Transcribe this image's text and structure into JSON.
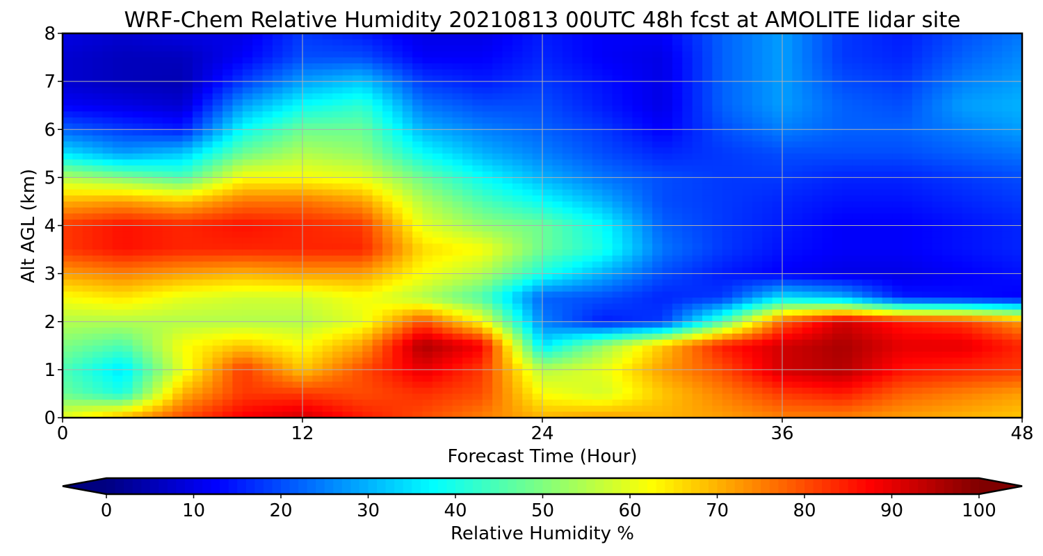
{
  "chart_data": {
    "type": "heatmap",
    "title": "WRF-Chem Relative Humidity 20210813 00UTC 48h fcst at AMOLITE lidar site",
    "xlabel": "Forecast Time (Hour)",
    "ylabel": "Alt AGL (km)",
    "xlim": [
      0,
      48
    ],
    "ylim": [
      0,
      8
    ],
    "x_ticks": [
      0,
      12,
      24,
      36,
      48
    ],
    "y_ticks": [
      0,
      1,
      2,
      3,
      4,
      5,
      6,
      7,
      8
    ],
    "grid": true,
    "colormap": "jet",
    "colorbar": {
      "label": "Relative Humidity %",
      "min": 0,
      "max": 100,
      "ticks": [
        0,
        10,
        20,
        30,
        40,
        50,
        60,
        70,
        80,
        90,
        100
      ],
      "extend": "both",
      "orientation": "horizontal",
      "placement": "bottom"
    },
    "x": [
      0,
      3,
      6,
      9,
      12,
      15,
      18,
      21,
      24,
      27,
      30,
      33,
      36,
      39,
      42,
      45,
      48
    ],
    "y": [
      0,
      0.5,
      1,
      1.5,
      2,
      2.5,
      3,
      3.5,
      4,
      4.5,
      5,
      5.5,
      6,
      6.5,
      7,
      7.5,
      8
    ],
    "values": [
      [
        60,
        70,
        80,
        88,
        92,
        85,
        80,
        75,
        70,
        72,
        70,
        72,
        75,
        75,
        72,
        70,
        68
      ],
      [
        48,
        40,
        70,
        82,
        82,
        80,
        83,
        80,
        62,
        58,
        68,
        75,
        82,
        85,
        78,
        75,
        72
      ],
      [
        45,
        35,
        60,
        82,
        68,
        80,
        90,
        82,
        55,
        60,
        72,
        80,
        92,
        95,
        86,
        84,
        82
      ],
      [
        50,
        45,
        62,
        68,
        62,
        72,
        96,
        88,
        35,
        52,
        68,
        85,
        92,
        96,
        90,
        90,
        84
      ],
      [
        55,
        55,
        55,
        55,
        55,
        60,
        80,
        62,
        25,
        15,
        18,
        45,
        78,
        92,
        85,
        82,
        72
      ],
      [
        62,
        65,
        60,
        58,
        58,
        62,
        55,
        45,
        22,
        20,
        16,
        18,
        35,
        30,
        15,
        14,
        12
      ],
      [
        72,
        75,
        72,
        70,
        72,
        72,
        62,
        55,
        40,
        30,
        20,
        15,
        12,
        10,
        10,
        12,
        14
      ],
      [
        82,
        86,
        84,
        84,
        84,
        84,
        66,
        62,
        48,
        40,
        24,
        18,
        14,
        12,
        12,
        14,
        16
      ],
      [
        82,
        86,
        84,
        86,
        84,
        82,
        60,
        52,
        48,
        38,
        22,
        18,
        15,
        12,
        12,
        14,
        16
      ],
      [
        70,
        72,
        68,
        76,
        76,
        72,
        55,
        45,
        38,
        30,
        20,
        18,
        16,
        14,
        14,
        16,
        18
      ],
      [
        55,
        50,
        45,
        62,
        62,
        60,
        48,
        38,
        30,
        24,
        20,
        18,
        18,
        16,
        16,
        18,
        20
      ],
      [
        35,
        28,
        32,
        48,
        55,
        52,
        38,
        30,
        25,
        20,
        16,
        18,
        20,
        20,
        20,
        22,
        24
      ],
      [
        22,
        18,
        15,
        38,
        48,
        48,
        30,
        25,
        22,
        18,
        12,
        20,
        25,
        22,
        22,
        25,
        28
      ],
      [
        12,
        10,
        8,
        28,
        38,
        42,
        24,
        20,
        20,
        15,
        10,
        22,
        28,
        22,
        20,
        28,
        30
      ],
      [
        8,
        6,
        5,
        18,
        28,
        32,
        18,
        15,
        18,
        14,
        10,
        22,
        28,
        20,
        18,
        25,
        28
      ],
      [
        8,
        6,
        6,
        12,
        20,
        20,
        12,
        12,
        16,
        12,
        10,
        22,
        28,
        18,
        16,
        22,
        26
      ],
      [
        10,
        8,
        10,
        10,
        18,
        15,
        10,
        10,
        15,
        12,
        12,
        22,
        28,
        18,
        15,
        20,
        24
      ]
    ]
  }
}
